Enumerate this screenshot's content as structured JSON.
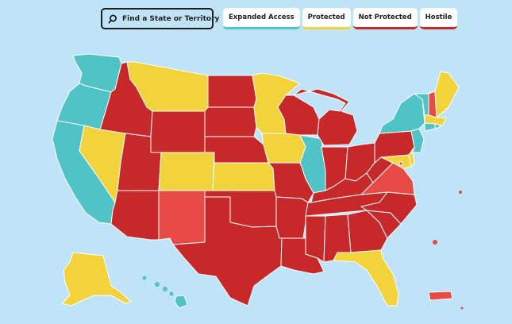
{
  "search": {
    "label": "Find a State or Territory",
    "icon": "search-icon"
  },
  "legend": [
    {
      "key": "expanded",
      "label": "Expanded Access",
      "color": "#4fc3c6"
    },
    {
      "key": "protected",
      "label": "Protected",
      "color": "#f2d33b"
    },
    {
      "key": "not_protected",
      "label": "Not Protected",
      "color": "#e84a45"
    },
    {
      "key": "hostile",
      "label": "Hostile",
      "color": "#c7292a"
    }
  ],
  "colors": {
    "background": "#bfe3f7",
    "expanded": "#4fc3c6",
    "protected": "#f2d33b",
    "not_protected": "#e84a45",
    "hostile": "#c7292a"
  },
  "states": {
    "WA": "expanded",
    "OR": "expanded",
    "CA": "expanded",
    "NV": "protected",
    "ID": "hostile",
    "MT": "protected",
    "WY": "hostile",
    "UT": "hostile",
    "AZ": "hostile",
    "CO": "protected",
    "NM": "not_protected",
    "ND": "hostile",
    "SD": "hostile",
    "NE": "hostile",
    "KS": "protected",
    "OK": "hostile",
    "TX": "hostile",
    "MN": "protected",
    "IA": "protected",
    "MO": "hostile",
    "AR": "hostile",
    "LA": "hostile",
    "WI": "hostile",
    "IL": "expanded",
    "MI": "hostile",
    "IN": "hostile",
    "OH": "hostile",
    "KY": "hostile",
    "TN": "hostile",
    "MS": "hostile",
    "AL": "hostile",
    "GA": "hostile",
    "FL": "protected",
    "SC": "hostile",
    "NC": "hostile",
    "VA": "not_protected",
    "WV": "hostile",
    "PA": "hostile",
    "NY": "expanded",
    "VT": "expanded",
    "NH": "not_protected",
    "ME": "protected",
    "MA": "protected",
    "CT": "expanded",
    "RI": "expanded",
    "NJ": "expanded",
    "DE": "protected",
    "MD": "protected",
    "DC": "not_protected",
    "AK": "protected",
    "HI": "expanded",
    "PR": "not_protected"
  }
}
